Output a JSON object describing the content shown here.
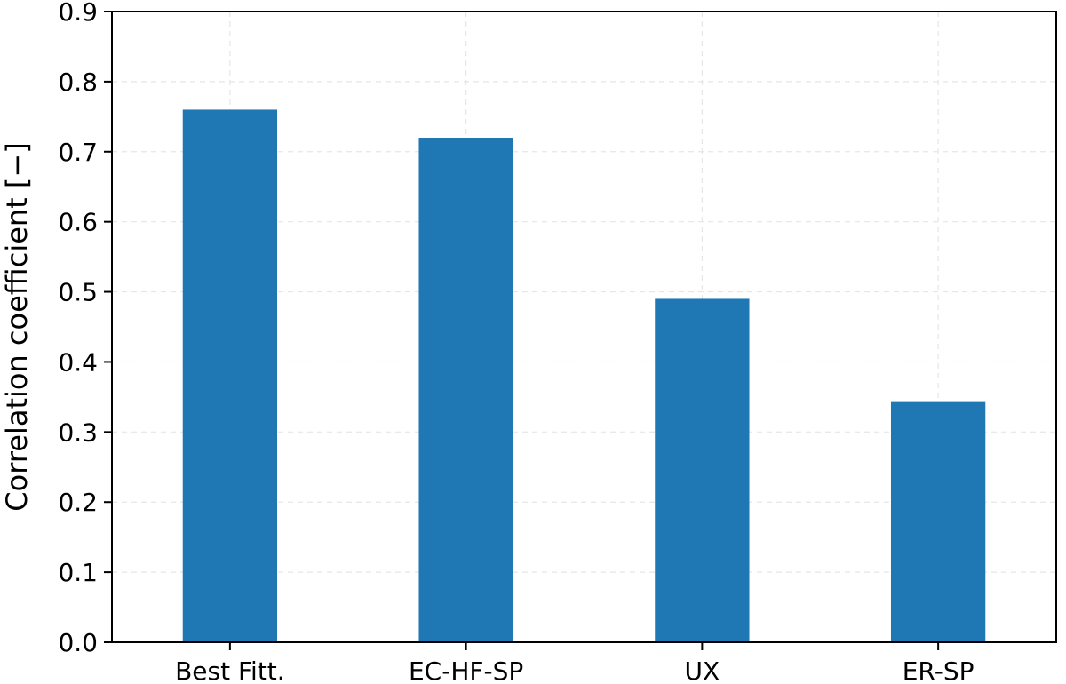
{
  "chart_data": {
    "type": "bar",
    "categories": [
      "Best Fitt.",
      "EC-HF-SP",
      "UX",
      "ER-SP"
    ],
    "values": [
      0.76,
      0.72,
      0.49,
      0.344
    ],
    "title": "",
    "xlabel": "",
    "ylabel": "Correlation coefficient [−]",
    "ylim": [
      0,
      0.9
    ],
    "yticks": [
      "0.0",
      "0.1",
      "0.2",
      "0.3",
      "0.4",
      "0.5",
      "0.6",
      "0.7",
      "0.8",
      "0.9"
    ],
    "grid": true,
    "bar_color": "#1f77b4",
    "grid_color": "#e6e6e6"
  }
}
